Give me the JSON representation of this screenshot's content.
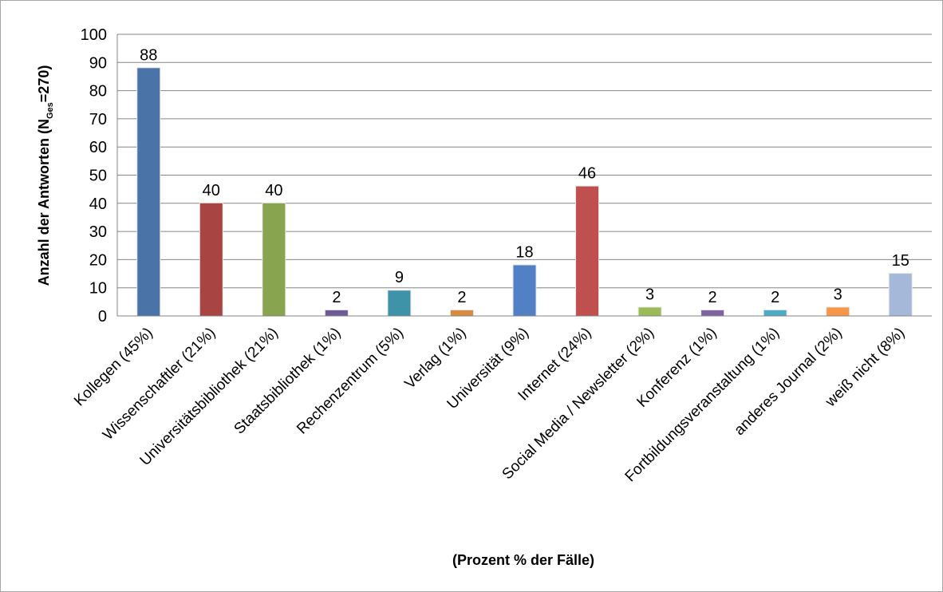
{
  "chart_data": {
    "type": "bar",
    "title": "",
    "xlabel": "(Prozent % der Fälle)",
    "ylabel": {
      "prefix": "Anzahl der  Antworten (N",
      "subscript": "Ges",
      "suffix": "=270)"
    },
    "ylim": [
      0,
      100
    ],
    "yticks": [
      "0",
      "10",
      "20",
      "30",
      "40",
      "50",
      "60",
      "70",
      "80",
      "90",
      "100"
    ],
    "grid": true,
    "legend": "none",
    "categories": [
      "Kollegen (45%)",
      "Wissenschaftler (21%)",
      "Universitätsbibliothek (21%)",
      "Staatsbibliothek (1%)",
      "Rechenzentrum (5%)",
      "Verlag (1%)",
      "Universität (9%)",
      "Internet (24%)",
      "Social Media / Newsletter (2%)",
      "Konferenz (1%)",
      "Fortbildungsveranstaltung (1%)",
      "anderes Journal (2%)",
      "weiß nicht (8%)"
    ],
    "values": [
      88,
      40,
      40,
      2,
      9,
      2,
      18,
      46,
      3,
      2,
      2,
      3,
      15
    ],
    "colors": [
      "#4a73a8",
      "#a84543",
      "#88a44e",
      "#6e5a96",
      "#3e93a8",
      "#d88a3f",
      "#5181c4",
      "#c0504d",
      "#9bbb59",
      "#8064a2",
      "#4bacc6",
      "#f79646",
      "#a5b8da"
    ]
  }
}
